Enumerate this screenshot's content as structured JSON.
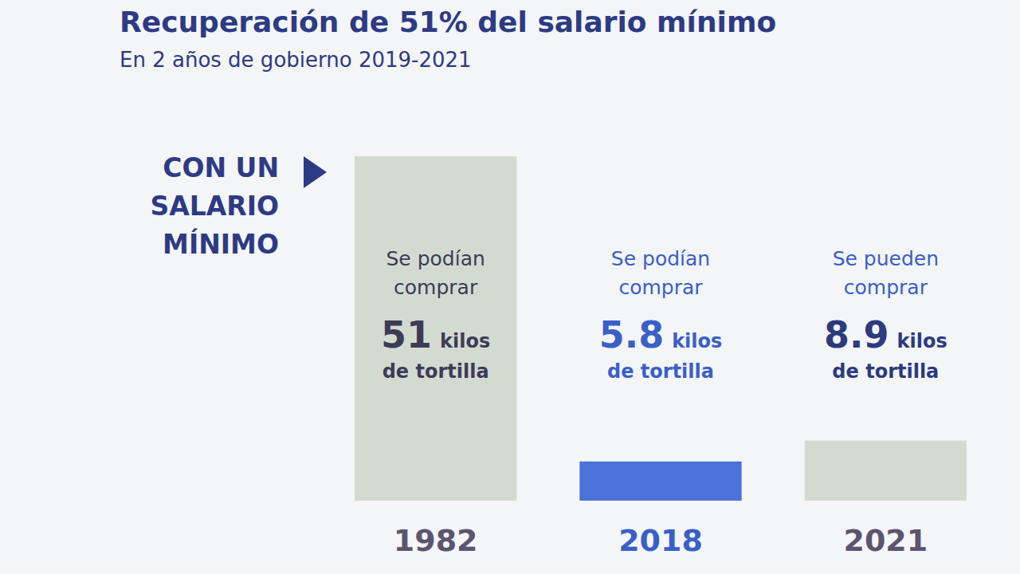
{
  "chart_data": {
    "type": "bar",
    "title": "Recuperación de 51% del salario mínimo",
    "subtitle": "En 2 años de gobierno 2019-2021",
    "side_label": "CON UN SALARIO MÍNIMO",
    "categories": [
      "1982",
      "2018",
      "2021"
    ],
    "values": [
      51,
      5.8,
      8.9
    ],
    "colors": [
      "#d3dbd1",
      "#4a72d8",
      "#d3dbd1"
    ],
    "annotations": [
      {
        "lead": "Se podían comprar",
        "unit": "kilos",
        "object": "de tortilla"
      },
      {
        "lead": "Se podían comprar",
        "unit": "kilos",
        "object": "de tortilla"
      },
      {
        "lead": "Se pueden comprar",
        "unit": "kilos",
        "object": "de tortilla"
      }
    ],
    "ylim": [
      0,
      51
    ],
    "data_labels": true,
    "tick_labels": "x",
    "grid": false
  }
}
